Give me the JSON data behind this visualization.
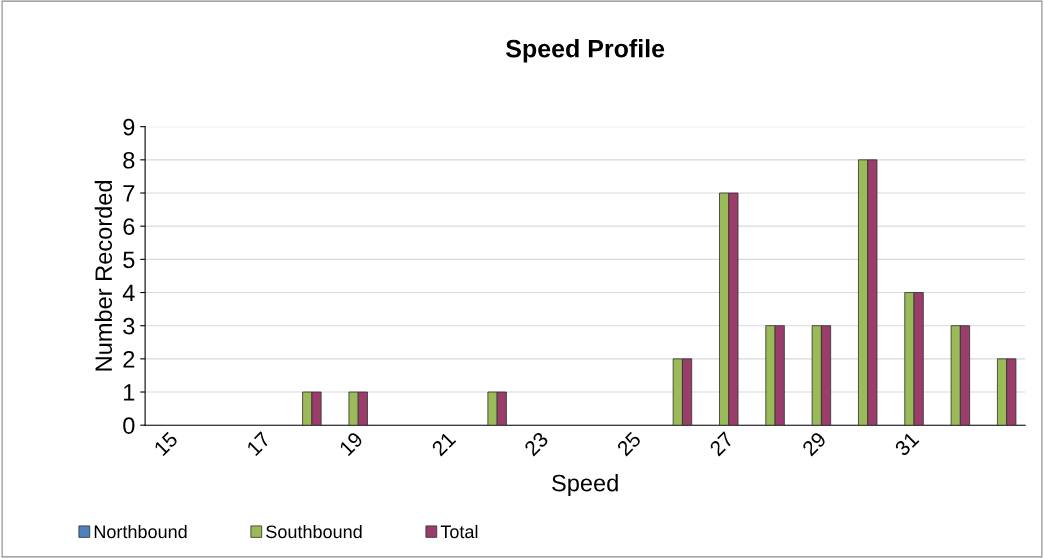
{
  "chart_data": {
    "type": "bar",
    "title": "Speed Profile",
    "xlabel": "Speed",
    "ylabel": "Number Recorded",
    "categories": [
      "15",
      null,
      "17",
      null,
      "19",
      null,
      "21",
      null,
      "23",
      null,
      "25",
      null,
      "27",
      null,
      "29",
      null,
      "31",
      null,
      null
    ],
    "series": [
      {
        "name": "Northbound",
        "color": "#4f81bd",
        "values": [
          0,
          0,
          0,
          0,
          0,
          0,
          0,
          0,
          0,
          0,
          0,
          0,
          0,
          0,
          0,
          0,
          0,
          0,
          0
        ]
      },
      {
        "name": "Southbound",
        "color": "#9bbb59",
        "values": [
          0,
          0,
          0,
          1,
          1,
          0,
          0,
          1,
          0,
          0,
          0,
          2,
          7,
          3,
          3,
          8,
          4,
          3,
          2
        ]
      },
      {
        "name": "Total",
        "color": "#9b3d6b",
        "values": [
          0,
          0,
          0,
          1,
          1,
          0,
          0,
          1,
          0,
          0,
          0,
          2,
          7,
          3,
          3,
          8,
          4,
          3,
          2
        ]
      }
    ],
    "ylim": [
      0,
      9
    ],
    "yticks": [
      0,
      1,
      2,
      3,
      4,
      5,
      6,
      7,
      8,
      9
    ],
    "grid": "y",
    "legend": "bottom left"
  }
}
